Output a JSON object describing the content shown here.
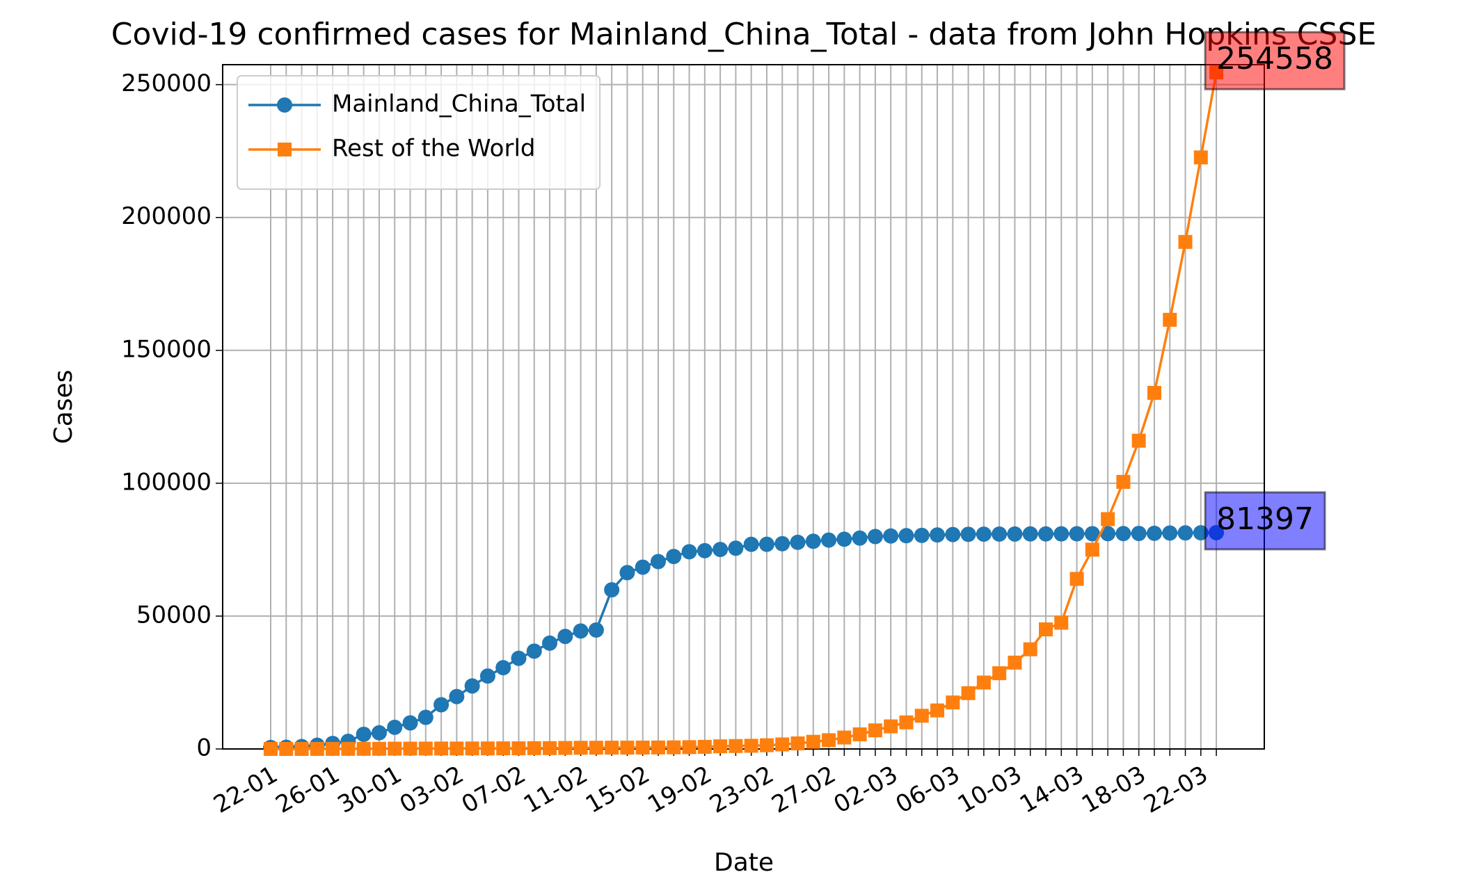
{
  "chart_data": {
    "type": "line",
    "title": "Covid-19 confirmed cases for Mainland_China_Total - data from John Hopkins CSSE",
    "xlabel": "Date",
    "ylabel": "Cases",
    "categories": [
      "22-01",
      null,
      null,
      null,
      "26-01",
      null,
      null,
      null,
      "30-01",
      null,
      null,
      null,
      "03-02",
      null,
      null,
      null,
      "07-02",
      null,
      null,
      null,
      "11-02",
      null,
      null,
      null,
      "15-02",
      null,
      null,
      null,
      "19-02",
      null,
      null,
      null,
      "23-02",
      null,
      null,
      null,
      "27-02",
      null,
      null,
      null,
      "02-03",
      null,
      null,
      null,
      "06-03",
      null,
      null,
      null,
      "10-03",
      null,
      null,
      null,
      "14-03",
      null,
      null,
      null,
      "18-03",
      null,
      null,
      null,
      "22-03",
      null
    ],
    "series": [
      {
        "name": "Mainland_China_Total",
        "color": "#1f77b4",
        "marker": "circle",
        "label_color": "#0000ff",
        "values": [
          548,
          643,
          920,
          1406,
          2075,
          2877,
          5509,
          6087,
          8141,
          9802,
          11891,
          16630,
          19716,
          23707,
          27440,
          30587,
          34110,
          36814,
          39829,
          42354,
          44386,
          44759,
          59895,
          66358,
          68413,
          70513,
          72434,
          74211,
          74619,
          75077,
          75550,
          77001,
          77022,
          77241,
          77754,
          78166,
          78600,
          78928,
          79356,
          79932,
          80136,
          80261,
          80386,
          80537,
          80690,
          80770,
          80823,
          80860,
          80887,
          80921,
          80932,
          80945,
          80977,
          81003,
          81033,
          81058,
          81102,
          81156,
          81250,
          81305,
          81350,
          81397
        ]
      },
      {
        "name": "Rest of the World",
        "color": "#ff7f0e",
        "marker": "square",
        "label_color": "#ff0000",
        "values": [
          6,
          8,
          16,
          20,
          31,
          48,
          57,
          71,
          116,
          133,
          148,
          171,
          177,
          194,
          210,
          238,
          249,
          303,
          317,
          388,
          445,
          470,
          495,
          508,
          525,
          560,
          600,
          680,
          800,
          1000,
          1100,
          1200,
          1400,
          1700,
          2100,
          2700,
          3300,
          4300,
          5500,
          7000,
          8500,
          10000,
          12500,
          14500,
          17500,
          21000,
          25000,
          28500,
          32500,
          37500,
          45000,
          47500,
          64000,
          75000,
          86500,
          100500,
          116000,
          134000,
          161500,
          190800,
          222600,
          254558
        ]
      }
    ],
    "ylim": [
      0,
      257500
    ],
    "yticks": [
      0,
      50000,
      100000,
      150000,
      200000,
      250000
    ],
    "grid": true,
    "legend": "upper left"
  }
}
